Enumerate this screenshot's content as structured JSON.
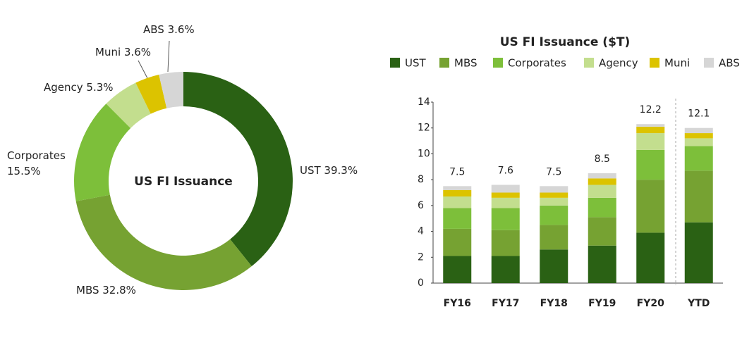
{
  "chart_data": [
    {
      "type": "pie",
      "center_label": "US FI Issuance",
      "categories": [
        "UST",
        "MBS",
        "Corporates",
        "Agency",
        "Muni",
        "ABS"
      ],
      "values": [
        39.3,
        32.8,
        15.5,
        5.3,
        3.6,
        3.6
      ],
      "value_labels": [
        "UST 39.3%",
        "MBS 32.8%",
        "Corporates 15.5%",
        "Agency 5.3%",
        "Muni 3.6%",
        "ABS 3.6%"
      ],
      "colors": [
        "#2a6114",
        "#76a232",
        "#7dbf3a",
        "#c3de8e",
        "#dcc300",
        "#d6d6d6"
      ]
    },
    {
      "type": "stacked_bar",
      "title": "US FI Issuance ($T)",
      "categories": [
        "FY16",
        "FY17",
        "FY18",
        "FY19",
        "FY20",
        "YTD"
      ],
      "series": [
        {
          "name": "UST",
          "color": "#2a6114",
          "values": [
            2.1,
            2.1,
            2.6,
            2.9,
            3.9,
            4.7
          ]
        },
        {
          "name": "MBS",
          "color": "#76a232",
          "values": [
            2.1,
            2.0,
            1.9,
            2.2,
            4.1,
            4.0
          ]
        },
        {
          "name": "Corporates",
          "color": "#7dbf3a",
          "values": [
            1.6,
            1.7,
            1.5,
            1.5,
            2.3,
            1.9
          ]
        },
        {
          "name": "Agency",
          "color": "#c3de8e",
          "values": [
            0.9,
            0.8,
            0.6,
            1.0,
            1.3,
            0.6
          ]
        },
        {
          "name": "Muni",
          "color": "#dcc300",
          "values": [
            0.5,
            0.4,
            0.4,
            0.5,
            0.5,
            0.4
          ]
        },
        {
          "name": "ABS",
          "color": "#d6d6d6",
          "values": [
            0.3,
            0.6,
            0.5,
            0.4,
            0.2,
            0.4
          ]
        }
      ],
      "totals": [
        7.5,
        7.6,
        7.5,
        8.5,
        12.2,
        12.1
      ],
      "ylim": [
        0,
        14
      ],
      "yticks": [
        0,
        2,
        4,
        6,
        8,
        10,
        12,
        14
      ],
      "grid": false
    }
  ]
}
